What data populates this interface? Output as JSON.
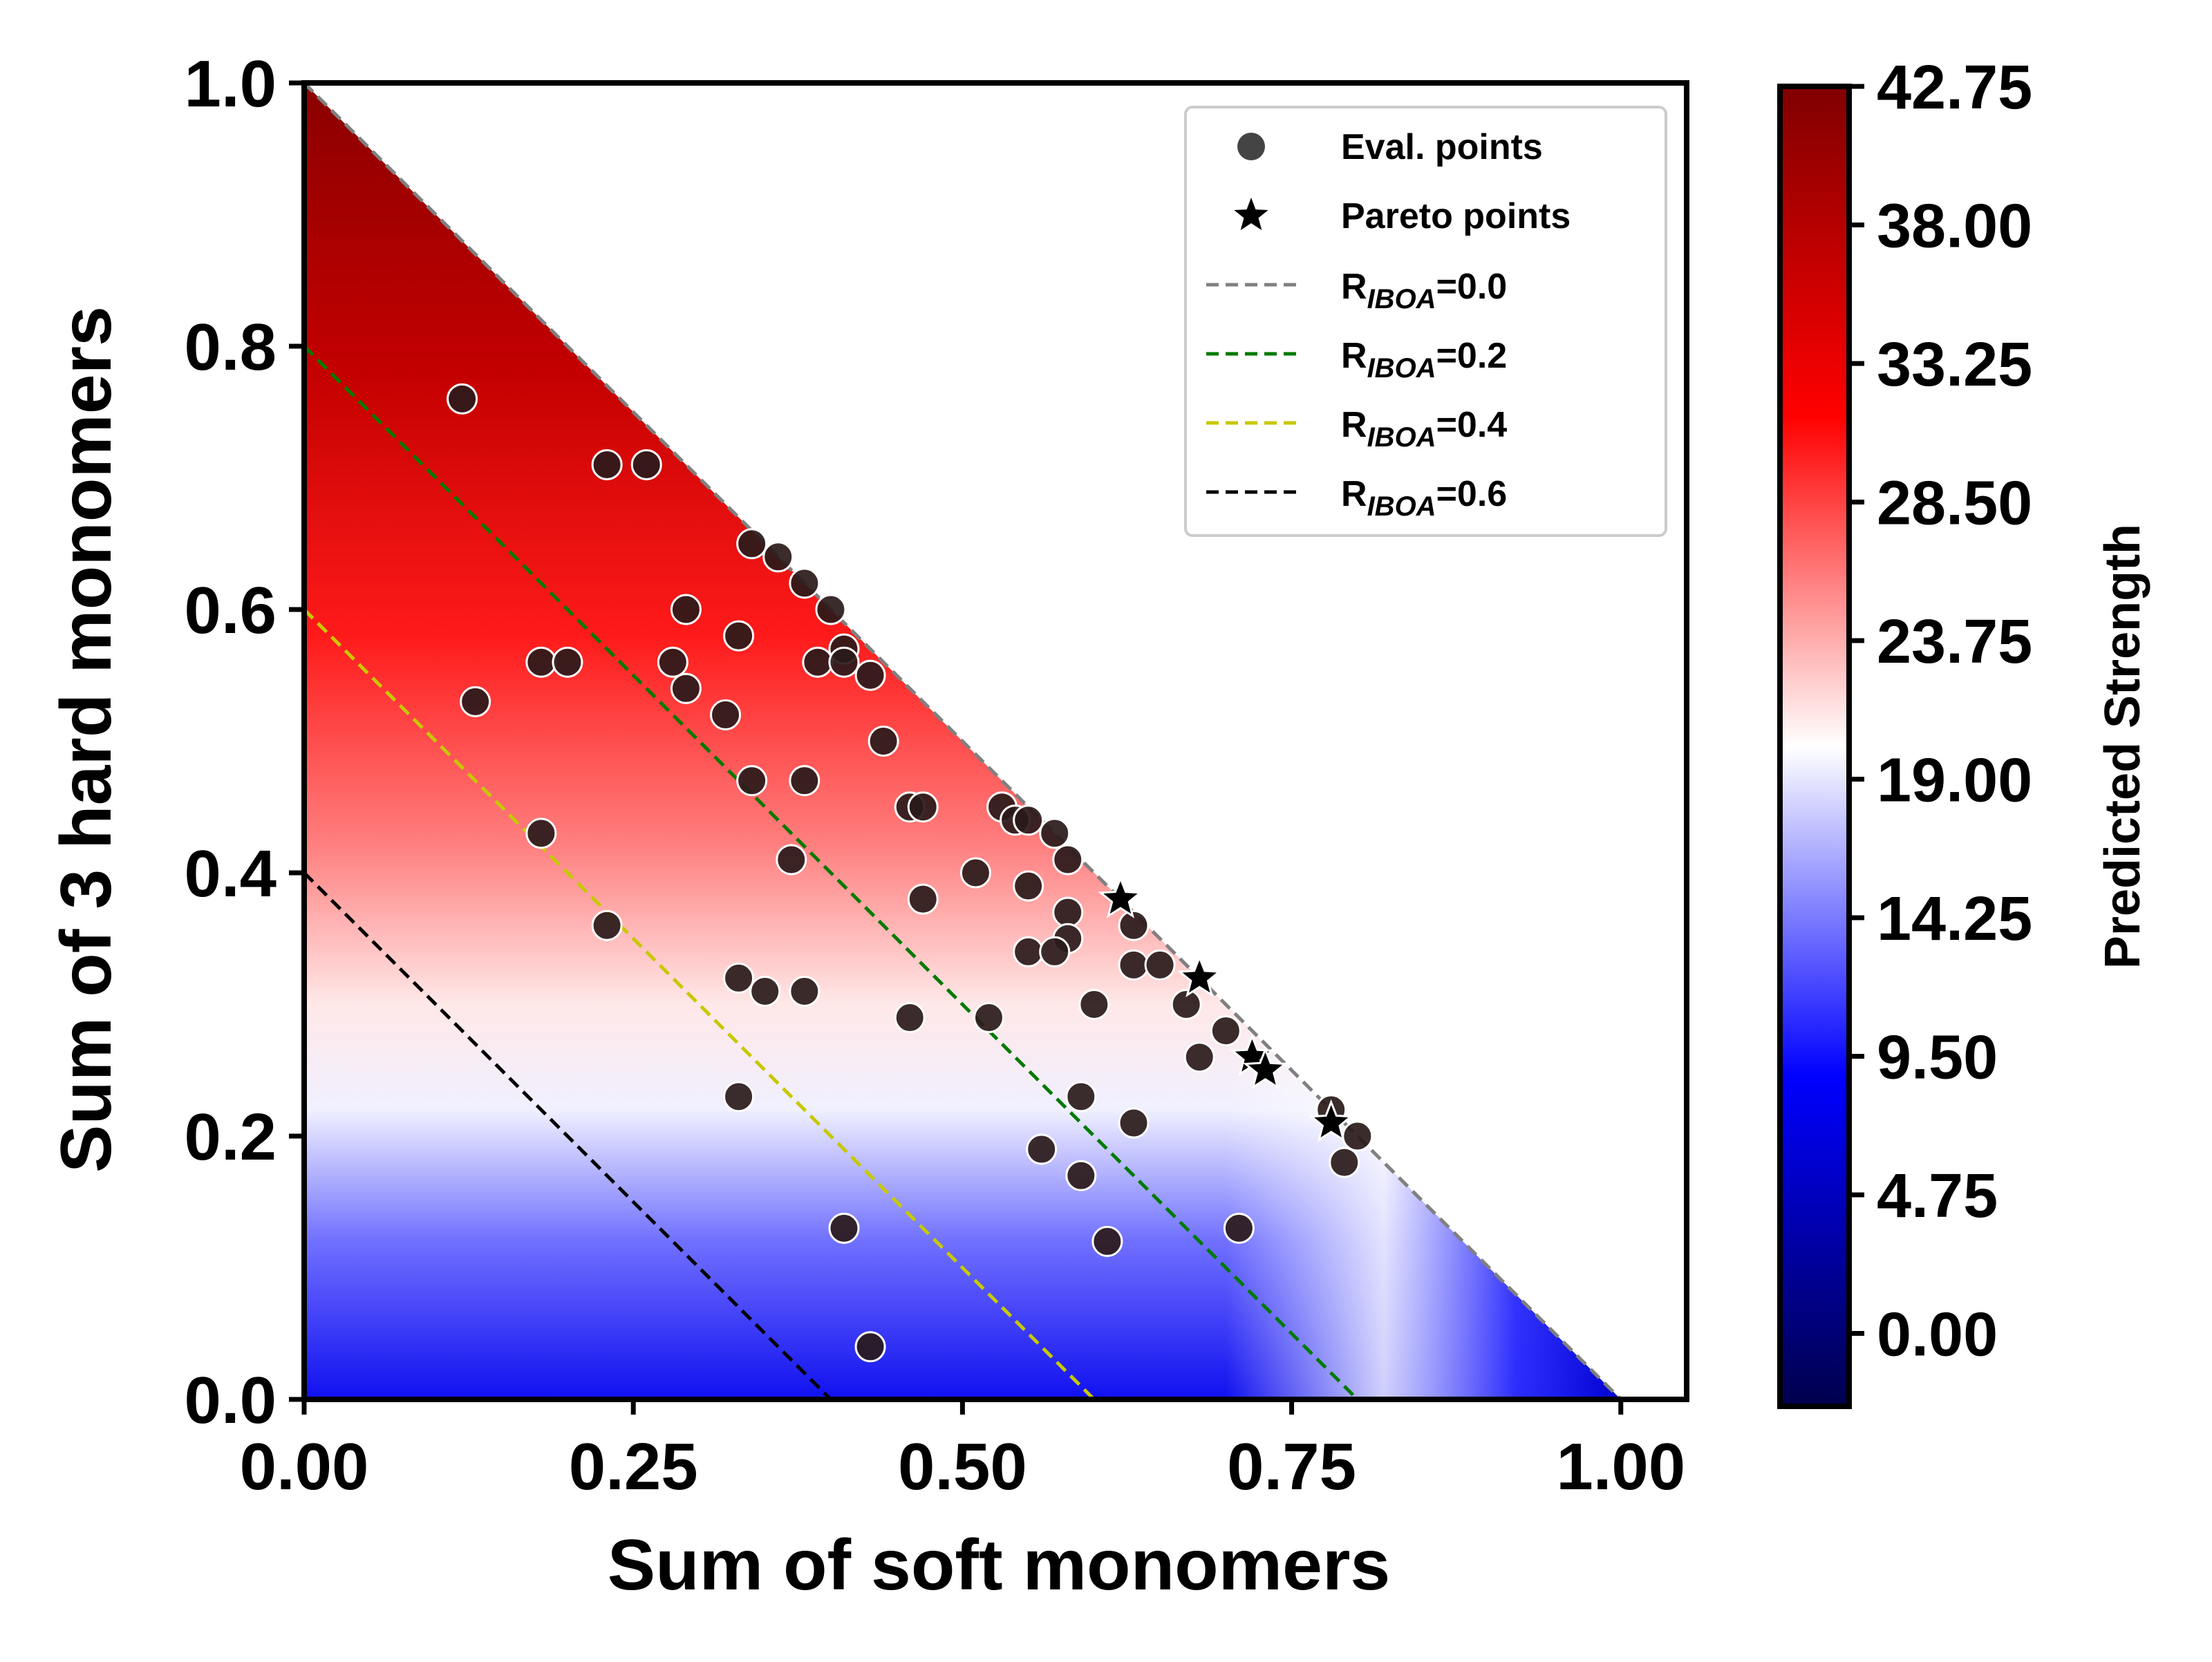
{
  "chart_data": {
    "type": "scatter",
    "xlabel": "Sum of soft monomers",
    "ylabel": "Sum of 3 hard monomers",
    "xlim": [
      0.0,
      1.05
    ],
    "ylim": [
      0.0,
      1.0
    ],
    "x_ticks": [
      "0.00",
      "0.25",
      "0.50",
      "0.75",
      "1.00"
    ],
    "y_ticks": [
      "0.0",
      "0.2",
      "0.4",
      "0.6",
      "0.8",
      "1.0"
    ],
    "grid": false,
    "legend_position": "top-right",
    "legend": {
      "eval_label": "Eval. points",
      "pareto_label": "Pareto points",
      "r_prefix": "R",
      "r_sub": "IBOA",
      "r00": "=0.0",
      "r02": "=0.2",
      "r04": "=0.4",
      "r06": "=0.6"
    },
    "lines": [
      {
        "r_iboa": 0.0,
        "color": "#808080"
      },
      {
        "r_iboa": 0.2,
        "color": "#007a00"
      },
      {
        "r_iboa": 0.4,
        "color": "#c8c800"
      },
      {
        "r_iboa": 0.6,
        "color": "#000000"
      }
    ],
    "colorbar": {
      "label": "Predicted Strength",
      "ticks": [
        "42.75",
        "38.00",
        "33.25",
        "28.50",
        "23.75",
        "19.00",
        "14.25",
        "9.50",
        "4.75",
        "0.00"
      ],
      "tick_values": [
        42.75,
        38.0,
        33.25,
        28.5,
        23.75,
        19.0,
        14.25,
        9.5,
        4.75,
        0.0
      ],
      "range": [
        -2.5,
        42.75
      ],
      "colormap": "seismic"
    },
    "eval_points": [
      [
        0.12,
        0.76
      ],
      [
        0.23,
        0.71
      ],
      [
        0.26,
        0.71
      ],
      [
        0.34,
        0.65
      ],
      [
        0.36,
        0.64
      ],
      [
        0.38,
        0.62
      ],
      [
        0.4,
        0.6
      ],
      [
        0.29,
        0.6
      ],
      [
        0.33,
        0.58
      ],
      [
        0.41,
        0.57
      ],
      [
        0.18,
        0.56
      ],
      [
        0.2,
        0.56
      ],
      [
        0.28,
        0.56
      ],
      [
        0.39,
        0.56
      ],
      [
        0.41,
        0.56
      ],
      [
        0.43,
        0.55
      ],
      [
        0.29,
        0.54
      ],
      [
        0.13,
        0.53
      ],
      [
        0.32,
        0.52
      ],
      [
        0.44,
        0.5
      ],
      [
        0.34,
        0.47
      ],
      [
        0.38,
        0.47
      ],
      [
        0.46,
        0.45
      ],
      [
        0.47,
        0.45
      ],
      [
        0.53,
        0.45
      ],
      [
        0.54,
        0.44
      ],
      [
        0.55,
        0.44
      ],
      [
        0.57,
        0.43
      ],
      [
        0.18,
        0.43
      ],
      [
        0.37,
        0.41
      ],
      [
        0.58,
        0.41
      ],
      [
        0.51,
        0.4
      ],
      [
        0.55,
        0.39
      ],
      [
        0.47,
        0.38
      ],
      [
        0.58,
        0.37
      ],
      [
        0.63,
        0.36
      ],
      [
        0.23,
        0.36
      ],
      [
        0.58,
        0.35
      ],
      [
        0.55,
        0.34
      ],
      [
        0.57,
        0.34
      ],
      [
        0.63,
        0.33
      ],
      [
        0.65,
        0.33
      ],
      [
        0.33,
        0.32
      ],
      [
        0.35,
        0.31
      ],
      [
        0.38,
        0.31
      ],
      [
        0.6,
        0.3
      ],
      [
        0.67,
        0.3
      ],
      [
        0.46,
        0.29
      ],
      [
        0.52,
        0.29
      ],
      [
        0.7,
        0.28
      ],
      [
        0.68,
        0.26
      ],
      [
        0.33,
        0.23
      ],
      [
        0.59,
        0.23
      ],
      [
        0.78,
        0.22
      ],
      [
        0.63,
        0.21
      ],
      [
        0.8,
        0.2
      ],
      [
        0.56,
        0.19
      ],
      [
        0.79,
        0.18
      ],
      [
        0.59,
        0.17
      ],
      [
        0.41,
        0.13
      ],
      [
        0.71,
        0.13
      ],
      [
        0.61,
        0.12
      ],
      [
        0.43,
        0.04
      ]
    ],
    "pareto_points": [
      [
        0.62,
        0.38
      ],
      [
        0.68,
        0.32
      ],
      [
        0.72,
        0.26
      ],
      [
        0.73,
        0.25
      ],
      [
        0.78,
        0.21
      ]
    ]
  }
}
